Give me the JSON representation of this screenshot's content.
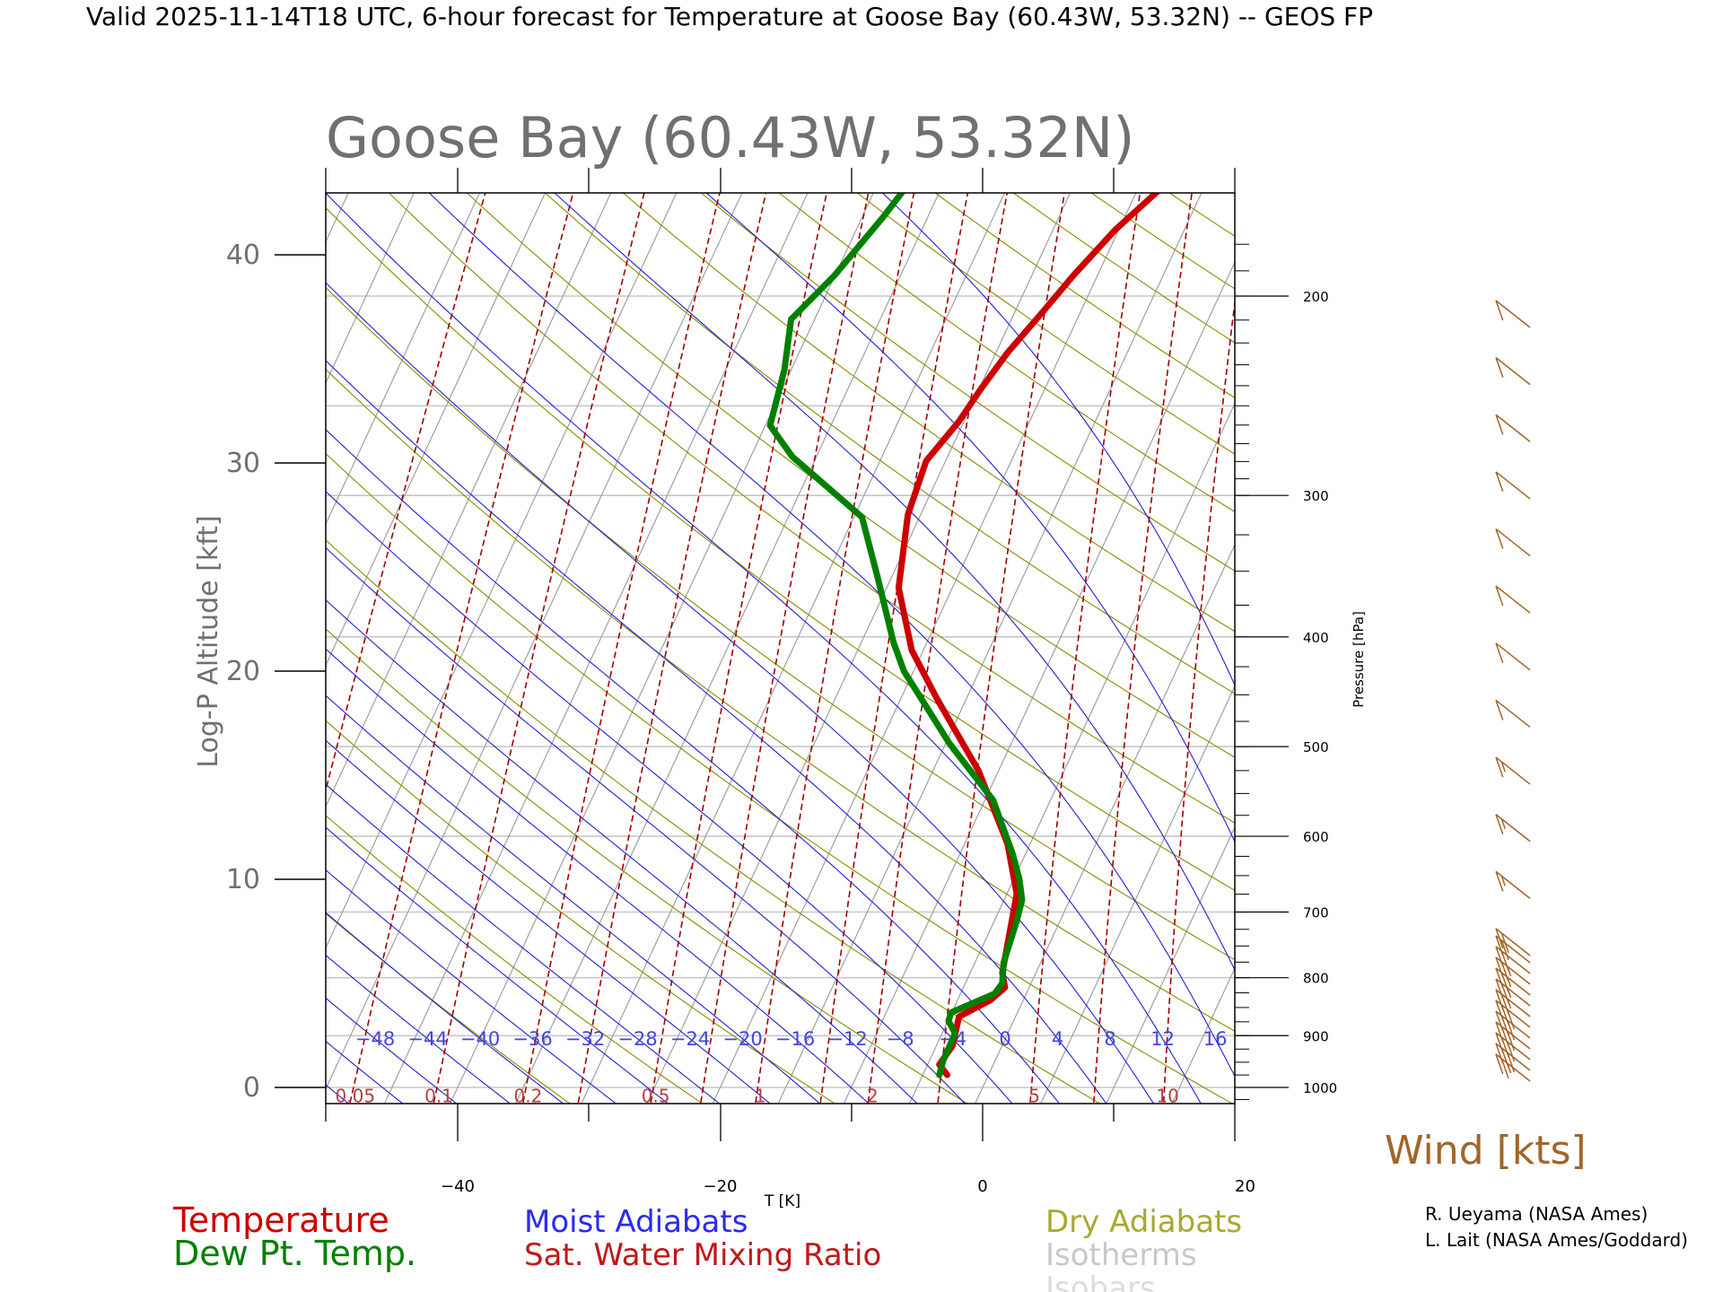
{
  "header": {
    "valid_line": "Valid 2025-11-14T18 UTC, 6-hour forecast for Temperature at Goose Bay (60.43W, 53.32N) -- GEOS FP"
  },
  "chart_data": {
    "type": "line",
    "title": "Goose Bay (60.43W, 53.32N)",
    "xlabel": "T [K]",
    "ylabel": "Log-P Altitude [kft]",
    "right_axis_label": "Pressure [hPa]",
    "xlim": [
      -50,
      20
    ],
    "ylim": [
      -1,
      43
    ],
    "x_ticks": [
      -40,
      -20,
      0,
      20
    ],
    "y_ticks": [
      0,
      10,
      20,
      30,
      40
    ],
    "pressure_labels": [
      1000,
      900,
      800,
      700,
      600,
      500,
      400,
      300,
      200
    ],
    "moist_adiabat_labels": [
      -48,
      -44,
      -40,
      -36,
      -32,
      -28,
      -24,
      -20,
      -16,
      -12,
      -8,
      -4,
      0,
      4,
      8,
      12,
      16
    ],
    "mixing_ratio_labels": [
      "0.05",
      "0.1",
      "0.2",
      "0.5",
      "1",
      "2",
      "5",
      "10"
    ],
    "series": [
      {
        "name": "Temperature",
        "color": "#cc0000",
        "points": [
          [
            -2.7,
            0.6
          ],
          [
            -3.3,
            1.1
          ],
          [
            -2.3,
            2.0
          ],
          [
            -1.8,
            3.4
          ],
          [
            0.6,
            4.2
          ],
          [
            1.7,
            4.8
          ],
          [
            1.5,
            5.5
          ],
          [
            2.6,
            9.3
          ],
          [
            1.9,
            11.7
          ],
          [
            -0.3,
            15.2
          ],
          [
            -3.5,
            18.7
          ],
          [
            -5.4,
            21.0
          ],
          [
            -6.4,
            24.0
          ],
          [
            -5.7,
            27.5
          ],
          [
            -4.3,
            30.1
          ],
          [
            -1.8,
            32.0
          ],
          [
            -0.2,
            33.5
          ],
          [
            1.9,
            35.3
          ],
          [
            4.5,
            37.2
          ],
          [
            6.9,
            39.0
          ],
          [
            10.1,
            41.2
          ],
          [
            13.6,
            43.2
          ]
        ]
      },
      {
        "name": "Dew Pt. Temp.",
        "color": "#008000",
        "points": [
          [
            -3.3,
            0.6
          ],
          [
            -3.0,
            1.3
          ],
          [
            -2.1,
            2.6
          ],
          [
            -2.6,
            3.2
          ],
          [
            -2.4,
            3.6
          ],
          [
            0.9,
            4.5
          ],
          [
            1.5,
            5.0
          ],
          [
            1.6,
            6.0
          ],
          [
            2.6,
            8.0
          ],
          [
            3.0,
            9.0
          ],
          [
            2.8,
            10.0
          ],
          [
            2.3,
            11.2
          ],
          [
            0.8,
            13.8
          ],
          [
            -2.5,
            16.5
          ],
          [
            -6.0,
            20.0
          ],
          [
            -6.8,
            21.4
          ],
          [
            -8.0,
            24.5
          ],
          [
            -9.2,
            27.4
          ],
          [
            -14.5,
            30.3
          ],
          [
            -16.2,
            31.8
          ],
          [
            -15.1,
            34.5
          ],
          [
            -14.6,
            36.9
          ],
          [
            -11.3,
            39.0
          ],
          [
            -7.6,
            41.8
          ],
          [
            -5.9,
            43.2
          ]
        ]
      }
    ],
    "wind_speeds_kts": [
      25,
      30,
      30,
      30,
      30,
      30,
      25,
      25,
      25,
      25,
      20,
      20,
      20,
      15,
      15,
      15,
      10,
      10,
      10,
      10,
      10,
      10,
      10,
      10
    ],
    "wind_label": "Wind [kts]",
    "legend": {
      "temperature": "Temperature",
      "dewpoint": "Dew Pt. Temp.",
      "moist": "Moist Adiabats",
      "mixing": "Sat. Water Mixing Ratio",
      "dry": "Dry Adiabats",
      "isotherms": "Isotherms",
      "isobars": "Isobars"
    },
    "credits": [
      "R. Ueyama (NASA Ames)",
      "L. Lait (NASA Ames/Goddard)"
    ],
    "colors": {
      "temperature": "#cc0000",
      "dewpoint": "#008000",
      "moist": "#1f1fd6",
      "mixing": "#a00000",
      "dry": "#8b8b00",
      "isotherm": "#a0a0a0",
      "isobar": "#c8c8c8",
      "wind": "#a0662a"
    }
  }
}
